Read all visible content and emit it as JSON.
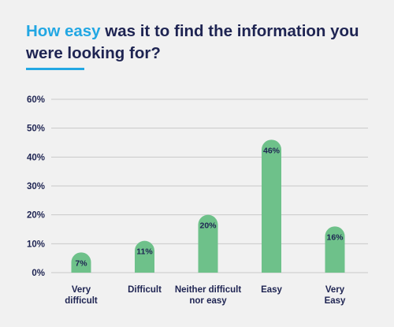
{
  "title": {
    "highlight": "How easy",
    "rest": "was it to find the information you were looking for?"
  },
  "colors": {
    "highlight": "#22a7e3",
    "text": "#1e2452",
    "bar": "#6ec18a",
    "grid": "#c9c9c9",
    "background": "#f1f1f1"
  },
  "chart_data": {
    "type": "bar",
    "title": "How easy was it to find the information you were looking for?",
    "categories": [
      [
        "Very",
        "difficult"
      ],
      [
        "Difficult"
      ],
      [
        "Neither difficult",
        "nor easy"
      ],
      [
        "Easy"
      ],
      [
        "Very",
        "Easy"
      ]
    ],
    "values": [
      7,
      11,
      20,
      46,
      16
    ],
    "value_labels": [
      "7%",
      "11%",
      "20%",
      "46%",
      "16%"
    ],
    "yticks": [
      "0%",
      "10%",
      "20%",
      "30%",
      "40%",
      "50%",
      "60%"
    ],
    "ylim": [
      0,
      60
    ],
    "grid": true,
    "xlabel": "",
    "ylabel": ""
  }
}
